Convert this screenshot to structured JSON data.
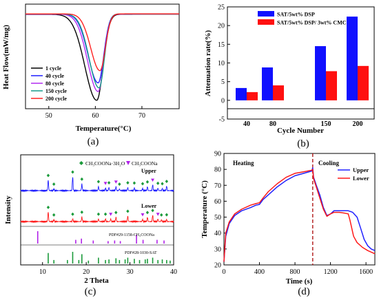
{
  "panels": {
    "a": {
      "caption": "(a)",
      "xlabel": "Temperature(°C)",
      "ylabel": "Heat Flow(mW/mg)",
      "xticks": [
        "50",
        "60",
        "70"
      ],
      "legend": [
        {
          "label": "1    cycle",
          "color": "#000000"
        },
        {
          "label": "40   cycle",
          "color": "#1f1fff"
        },
        {
          "label": "80   cycle",
          "color": "#b22cf0"
        },
        {
          "label": "150 cycle",
          "color": "#169a8c"
        },
        {
          "label": "200 cycle",
          "color": "#ff2020"
        }
      ]
    },
    "b": {
      "caption": "(b)",
      "xlabel": "Cycle Number",
      "ylabel": "Attenuation rate(%)",
      "legend": [
        {
          "label": "SAT/5wt% DSP",
          "color": "#1010ff"
        },
        {
          "label": "SAT/5wt% DSP/ 3wt% CMC",
          "color": "#ff1010"
        }
      ]
    },
    "c": {
      "caption": "(c)",
      "xlabel": "2 Theta",
      "ylabel": "Intensity",
      "legend_dsp": "CH₃COONa·3H₂O",
      "legend_anh": "CH₃COONa",
      "label_upper": "Upper",
      "label_lower": "Lower",
      "ref1": "PDF#29-1158-CH₃COONa",
      "ref2": "PDF#28-1030-SAT"
    },
    "d": {
      "caption": "(d)",
      "xlabel": "Time (s)",
      "ylabel": "Temperature (°C)",
      "label_heating": "Heating",
      "label_cooling": "Cooling",
      "legend": [
        {
          "label": "Upper",
          "color": "#2020ff"
        },
        {
          "label": "Lower",
          "color": "#ff1818"
        }
      ]
    }
  },
  "chart_data": [
    {
      "type": "line",
      "panel": "a",
      "xlim": [
        45,
        78
      ],
      "ylabel": "Heat Flow(mW/mg)",
      "xlabel": "Temperature(°C)",
      "series": [
        {
          "name": "1    cycle",
          "color": "#000000",
          "peak_x": 60.3,
          "peak_depth": 1.0,
          "left_width": 3.6,
          "right_width": 1.9,
          "baseline_offset": 0.09
        },
        {
          "name": "40   cycle",
          "color": "#1f1fff",
          "peak_x": 60.6,
          "peak_depth": 0.8,
          "left_width": 3.0,
          "right_width": 1.7,
          "baseline_offset": 0.05
        },
        {
          "name": "80   cycle",
          "color": "#b22cf0",
          "peak_x": 60.6,
          "peak_depth": 0.9,
          "left_width": 3.2,
          "right_width": 1.7,
          "baseline_offset": 0.06
        },
        {
          "name": "150 cycle",
          "color": "#169a8c",
          "peak_x": 60.8,
          "peak_depth": 0.86,
          "left_width": 3.0,
          "right_width": 1.6,
          "baseline_offset": 0.03
        },
        {
          "name": "200 cycle",
          "color": "#ff2020",
          "peak_x": 61.0,
          "peak_depth": 0.66,
          "left_width": 2.8,
          "right_width": 1.6,
          "baseline_offset": 0.02
        }
      ]
    },
    {
      "type": "bar",
      "panel": "b",
      "categories": [
        "40",
        "80",
        "150",
        "200"
      ],
      "ylim": [
        -5,
        25
      ],
      "yticks": [
        -5,
        0,
        5,
        10,
        15,
        20,
        25
      ],
      "series": [
        {
          "name": "SAT/5wt% DSP",
          "color": "#1010ff",
          "values": [
            3.3,
            8.8,
            14.5,
            22.4
          ]
        },
        {
          "name": "SAT/5wt% DSP/ 3wt% CMC",
          "color": "#ff1010",
          "values": [
            2.2,
            4.0,
            7.8,
            9.2
          ]
        }
      ]
    },
    {
      "type": "line",
      "panel": "c",
      "xlim": [
        5,
        40
      ],
      "xticks": [
        10,
        20,
        30,
        40
      ],
      "upper_peaks": [
        [
          11.3,
          0.75
        ],
        [
          12.6,
          0.12
        ],
        [
          16.9,
          1.0
        ],
        [
          19.0,
          0.48
        ],
        [
          22.8,
          0.3
        ],
        [
          24.4,
          0.18
        ],
        [
          25.2,
          0.22
        ],
        [
          26.8,
          0.28
        ],
        [
          27.6,
          0.12
        ],
        [
          29.5,
          0.22
        ],
        [
          31.0,
          0.2
        ],
        [
          32.9,
          0.15
        ],
        [
          34.0,
          0.28
        ],
        [
          35.2,
          0.42
        ],
        [
          36.4,
          0.18
        ],
        [
          37.4,
          0.15
        ],
        [
          38.4,
          0.32
        ]
      ],
      "lower_peaks": [
        [
          11.3,
          0.72
        ],
        [
          12.6,
          0.14
        ],
        [
          16.9,
          0.2
        ],
        [
          19.0,
          0.35
        ],
        [
          22.8,
          0.2
        ],
        [
          24.4,
          0.2
        ],
        [
          25.6,
          0.2
        ],
        [
          26.8,
          0.32
        ],
        [
          29.5,
          0.42
        ],
        [
          32.9,
          0.16
        ],
        [
          34.0,
          0.32
        ],
        [
          35.2,
          0.48
        ],
        [
          36.4,
          0.2
        ],
        [
          37.2,
          0.14
        ],
        [
          38.4,
          0.15
        ]
      ],
      "ref_anhydrous": [
        [
          8.9,
          1.0
        ],
        [
          17.6,
          0.3
        ],
        [
          18.9,
          0.4
        ],
        [
          21.6,
          0.25
        ],
        [
          25.0,
          0.2
        ],
        [
          26.5,
          0.25
        ],
        [
          27.8,
          0.2
        ],
        [
          31.5,
          0.7
        ],
        [
          33.0,
          0.3
        ],
        [
          36.2,
          0.3
        ],
        [
          37.8,
          0.25
        ]
      ],
      "ref_sat": [
        [
          11.3,
          0.9
        ],
        [
          12.6,
          0.3
        ],
        [
          15.7,
          0.3
        ],
        [
          16.9,
          1.0
        ],
        [
          18.3,
          0.3
        ],
        [
          19.0,
          0.8
        ],
        [
          20.5,
          0.25
        ],
        [
          22.8,
          0.5
        ],
        [
          24.4,
          0.3
        ],
        [
          25.2,
          0.35
        ],
        [
          26.8,
          0.45
        ],
        [
          27.6,
          0.3
        ],
        [
          28.9,
          0.35
        ],
        [
          29.5,
          0.5
        ],
        [
          31.0,
          0.4
        ],
        [
          32.2,
          0.3
        ],
        [
          33.5,
          0.35
        ],
        [
          34.0,
          0.4
        ],
        [
          35.2,
          0.5
        ],
        [
          36.4,
          0.3
        ],
        [
          37.4,
          0.35
        ],
        [
          38.4,
          0.3
        ],
        [
          39.2,
          0.25
        ]
      ]
    },
    {
      "type": "line",
      "panel": "d",
      "xlabel": "Time (s)",
      "ylabel": "Temperature (°C)",
      "xlim": [
        0,
        1700
      ],
      "ylim": [
        20,
        90
      ],
      "xticks": [
        0,
        400,
        800,
        1200,
        1600
      ],
      "yticks": [
        20,
        30,
        40,
        50,
        60,
        70,
        80,
        90
      ],
      "divider_x": 1000,
      "series": [
        {
          "name": "Upper",
          "color": "#2020ff",
          "points": [
            [
              0,
              22
            ],
            [
              20,
              38
            ],
            [
              60,
              46
            ],
            [
              120,
              51
            ],
            [
              200,
              54
            ],
            [
              300,
              56
            ],
            [
              360,
              57.5
            ],
            [
              400,
              58
            ],
            [
              440,
              61
            ],
            [
              500,
              64
            ],
            [
              600,
              69
            ],
            [
              700,
              73
            ],
            [
              800,
              76
            ],
            [
              900,
              77.5
            ],
            [
              990,
              79
            ],
            [
              1000,
              81
            ],
            [
              1010,
              75
            ],
            [
              1040,
              70
            ],
            [
              1080,
              64
            ],
            [
              1120,
              56
            ],
            [
              1160,
              51
            ],
            [
              1200,
              52
            ],
            [
              1240,
              54
            ],
            [
              1300,
              54
            ],
            [
              1400,
              54
            ],
            [
              1450,
              53
            ],
            [
              1500,
              50
            ],
            [
              1540,
              43
            ],
            [
              1580,
              36
            ],
            [
              1620,
              32
            ],
            [
              1660,
              30
            ],
            [
              1700,
              29
            ]
          ]
        },
        {
          "name": "Lower",
          "color": "#ff1818",
          "points": [
            [
              0,
              22
            ],
            [
              20,
              40
            ],
            [
              60,
              47
            ],
            [
              120,
              52
            ],
            [
              200,
              55
            ],
            [
              300,
              57.5
            ],
            [
              360,
              58.5
            ],
            [
              400,
              59
            ],
            [
              440,
              62
            ],
            [
              500,
              66
            ],
            [
              600,
              71
            ],
            [
              700,
              75
            ],
            [
              800,
              77.5
            ],
            [
              900,
              78.5
            ],
            [
              990,
              79.5
            ],
            [
              1000,
              80
            ],
            [
              1010,
              74
            ],
            [
              1040,
              69
            ],
            [
              1080,
              62
            ],
            [
              1120,
              55
            ],
            [
              1160,
              50.5
            ],
            [
              1200,
              52
            ],
            [
              1240,
              53
            ],
            [
              1300,
              53
            ],
            [
              1360,
              52.5
            ],
            [
              1400,
              52
            ],
            [
              1420,
              48
            ],
            [
              1460,
              38
            ],
            [
              1500,
              34
            ],
            [
              1560,
              31
            ],
            [
              1620,
              29
            ],
            [
              1700,
              27
            ]
          ]
        }
      ]
    }
  ]
}
